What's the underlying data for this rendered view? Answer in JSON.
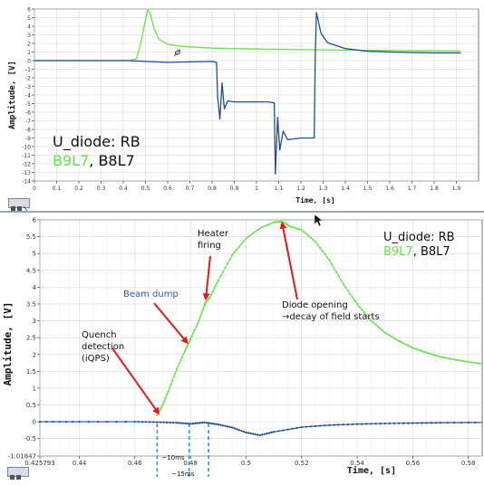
{
  "colors": {
    "green": "#66e24a",
    "blue": "#1f4e8c",
    "red": "#e01b1b",
    "cyan": "#2f8fe0",
    "beam": "#2a5aa8"
  },
  "chart_data": [
    {
      "type": "line",
      "title": "",
      "xlabel": "Time, [s]",
      "ylabel": "Amplitude, [V]",
      "xlim": [
        0,
        2.0
      ],
      "ylim": [
        -14,
        6
      ],
      "x_ticks": [
        0,
        0.1,
        0.2,
        0.3,
        0.4,
        0.5,
        0.6,
        0.7,
        0.8,
        0.9,
        1,
        1.1,
        1.2,
        1.3,
        1.4,
        1.5,
        1.6,
        1.7,
        1.8,
        1.9
      ],
      "x_tick_labels": [
        "0",
        "0.1",
        "0.2",
        "0.3",
        "0.4",
        "0.5",
        "0.6",
        "0.7",
        "0.8",
        "0.9",
        "1",
        "1.1",
        "1.2",
        "1.3",
        "1.4",
        "1.5",
        "1.6",
        "1.7",
        "1.8",
        "1.9"
      ],
      "y_ticks": [
        6,
        5,
        4,
        3,
        2,
        1,
        0,
        -1,
        -2,
        -3,
        -4,
        -5,
        -6,
        -7,
        -8,
        -9,
        -10,
        -11,
        -12,
        -13,
        -14
      ],
      "y_tick_labels": [
        "6",
        "5",
        "4",
        "3",
        "2",
        "1",
        "0",
        "-1",
        "-2",
        "-3",
        "-4",
        "-5",
        "-6",
        "-7",
        "-8",
        "-9",
        "-10",
        "-11",
        "-12",
        "-13",
        "-14"
      ],
      "legend": {
        "line1": "U_diode: RB",
        "series1": "B9L7",
        "sep": ",",
        "series2": "B8L7"
      },
      "grid": true,
      "series": [
        {
          "name": "B9L7",
          "color": "#66e24a",
          "x": [
            0,
            0.425,
            0.46,
            0.48,
            0.5,
            0.51,
            0.52,
            0.54,
            0.56,
            0.6,
            0.65,
            0.7,
            0.8,
            1.0,
            1.2,
            1.4,
            1.6,
            1.8,
            1.92
          ],
          "y": [
            0,
            0,
            0.2,
            2.2,
            4.8,
            5.9,
            5.6,
            3.6,
            2.5,
            1.9,
            1.7,
            1.6,
            1.45,
            1.35,
            1.28,
            1.22,
            1.18,
            1.14,
            1.12
          ]
        },
        {
          "name": "B8L7",
          "color": "#1f4e8c",
          "x": [
            0,
            0.425,
            0.5,
            0.6,
            0.7,
            0.8,
            0.82,
            0.825,
            0.835,
            0.845,
            0.855,
            0.87,
            0.9,
            1.05,
            1.08,
            1.085,
            1.095,
            1.105,
            1.12,
            1.14,
            1.2,
            1.25,
            1.26,
            1.265,
            1.27,
            1.29,
            1.32,
            1.4,
            1.5,
            1.6,
            1.7,
            1.8,
            1.92
          ],
          "y": [
            0,
            0,
            -0.1,
            -0.2,
            -0.15,
            -0.1,
            -0.2,
            -4.2,
            -6.8,
            -2.6,
            -5.6,
            -4.7,
            -4.8,
            -4.8,
            -4.9,
            -13.2,
            -6.6,
            -10.4,
            -8.2,
            -9.2,
            -9.0,
            -9.0,
            -9.0,
            1.0,
            5.6,
            3.2,
            2.1,
            1.4,
            1.1,
            1.0,
            0.95,
            0.9,
            0.9
          ]
        }
      ]
    },
    {
      "type": "line",
      "title": "",
      "xlabel": "Time, [s]",
      "ylabel": "Amplitude, [V]",
      "xlim": [
        0.425793,
        0.585
      ],
      "ylim": [
        -1.01847,
        6
      ],
      "x_ticks": [
        0.425793,
        0.44,
        0.46,
        0.48,
        0.5,
        0.52,
        0.54,
        0.56,
        0.58
      ],
      "x_tick_labels": [
        "0.425793",
        "0.44",
        "0.46",
        "0.48",
        "0.5",
        "0.52",
        "0.54",
        "0.56",
        "0.58"
      ],
      "y_ticks": [
        6,
        5.5,
        5,
        4.5,
        4,
        3.5,
        3,
        2.5,
        2,
        1.5,
        1,
        0.5,
        0,
        -0.5,
        -1.01847
      ],
      "y_tick_labels": [
        "6",
        "5.5",
        "5",
        "4.5",
        "4",
        "3.5",
        "3",
        "2.5",
        "2",
        "1.5",
        "1",
        "0.5",
        "0",
        "-0.5",
        "-1.01847"
      ],
      "legend": {
        "line1": "U_diode: RB",
        "series1": "B9L7",
        "sep": ",",
        "series2": "B8L7"
      },
      "grid": true,
      "annotations": [
        {
          "key": "heater",
          "lines": [
            "Heater",
            "firing"
          ]
        },
        {
          "key": "beam",
          "lines": [
            "Beam dump"
          ]
        },
        {
          "key": "quench",
          "lines": [
            "Quench",
            "detection",
            "(iQPS)"
          ]
        },
        {
          "key": "diode",
          "lines": [
            "Diode opening",
            "→decay of field starts"
          ]
        }
      ],
      "intervals": [
        {
          "label": "~10ms"
        },
        {
          "label": "~15ms"
        }
      ],
      "series": [
        {
          "name": "B9L7",
          "color": "#66e24a",
          "x": [
            0.468,
            0.47,
            0.472,
            0.475,
            0.478,
            0.48,
            0.483,
            0.485,
            0.4855,
            0.487,
            0.49,
            0.495,
            0.5,
            0.505,
            0.51,
            0.513,
            0.516,
            0.52,
            0.525,
            0.53,
            0.535,
            0.54,
            0.545,
            0.55,
            0.555,
            0.56,
            0.565,
            0.57,
            0.575,
            0.58,
            0.585
          ],
          "y": [
            0.2,
            0.5,
            0.9,
            1.55,
            2.1,
            2.45,
            3.0,
            3.45,
            3.55,
            3.7,
            4.2,
            4.95,
            5.45,
            5.75,
            5.93,
            5.95,
            5.8,
            5.7,
            5.35,
            4.8,
            4.1,
            3.5,
            3.0,
            2.65,
            2.4,
            2.2,
            2.05,
            1.93,
            1.85,
            1.78,
            1.72
          ]
        },
        {
          "name": "B8L7",
          "color": "#1f4e8c",
          "x": [
            0.425793,
            0.44,
            0.46,
            0.468,
            0.475,
            0.48,
            0.485,
            0.49,
            0.495,
            0.5,
            0.505,
            0.51,
            0.52,
            0.53,
            0.54,
            0.55,
            0.56,
            0.57,
            0.585
          ],
          "y": [
            0,
            0,
            0,
            -0.01,
            -0.03,
            -0.06,
            -0.02,
            -0.08,
            -0.17,
            -0.32,
            -0.4,
            -0.3,
            -0.16,
            -0.1,
            -0.07,
            -0.05,
            -0.04,
            -0.03,
            -0.02
          ]
        }
      ]
    }
  ]
}
